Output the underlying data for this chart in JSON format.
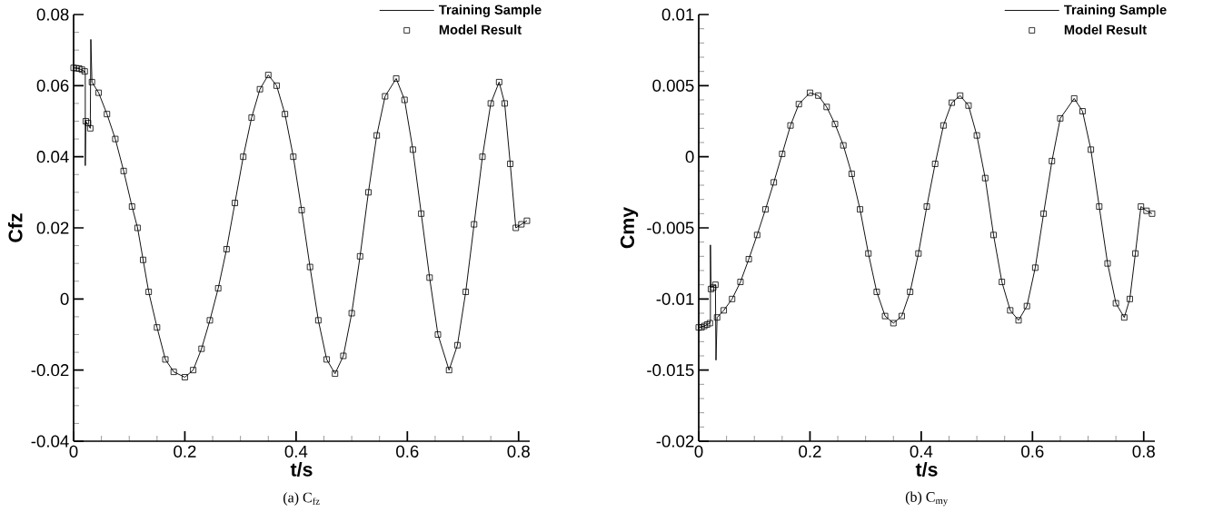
{
  "chart_data": [
    {
      "type": "line",
      "xlabel": "t/s",
      "ylabel": "Cfz",
      "annotations": [
        "(a) C$_{fz}$"
      ],
      "legend": "top right",
      "xlim": [
        0,
        0.82
      ],
      "ylim": [
        -0.04,
        0.08
      ],
      "xticks": [
        0,
        0.2,
        0.4,
        0.6,
        0.8
      ],
      "yticks": [
        -0.04,
        -0.02,
        0,
        0.02,
        0.04,
        0.06,
        0.08
      ],
      "series": [
        {
          "name": "Training Sample",
          "type": "line",
          "marker": "none",
          "color": "#000000",
          "x": [
            0,
            0.01,
            0.02,
            0.021,
            0.021,
            0.022,
            0.03,
            0.031,
            0.033,
            0.045,
            0.06,
            0.075,
            0.09,
            0.105,
            0.115,
            0.125,
            0.135,
            0.15,
            0.165,
            0.18,
            0.2,
            0.215,
            0.23,
            0.245,
            0.26,
            0.275,
            0.29,
            0.305,
            0.32,
            0.335,
            0.35,
            0.365,
            0.38,
            0.395,
            0.41,
            0.425,
            0.44,
            0.455,
            0.47,
            0.485,
            0.5,
            0.515,
            0.53,
            0.545,
            0.56,
            0.58,
            0.595,
            0.61,
            0.625,
            0.64,
            0.655,
            0.675,
            0.69,
            0.705,
            0.72,
            0.735,
            0.75,
            0.765,
            0.775,
            0.785,
            0.795,
            0.805,
            0.815
          ],
          "values": [
            0.065,
            0.0648,
            0.064,
            0.0635,
            0.0375,
            0.05,
            0.048,
            0.073,
            0.061,
            0.058,
            0.052,
            0.045,
            0.036,
            0.026,
            0.02,
            0.011,
            0.002,
            -0.008,
            -0.017,
            -0.0205,
            -0.022,
            -0.02,
            -0.014,
            -0.006,
            0.003,
            0.014,
            0.027,
            0.04,
            0.051,
            0.059,
            0.063,
            0.06,
            0.052,
            0.04,
            0.025,
            0.009,
            -0.006,
            -0.017,
            -0.021,
            -0.016,
            -0.004,
            0.012,
            0.03,
            0.046,
            0.057,
            0.062,
            0.056,
            0.042,
            0.024,
            0.006,
            -0.01,
            -0.02,
            -0.013,
            0.002,
            0.021,
            0.04,
            0.055,
            0.061,
            0.055,
            0.038,
            0.02,
            0.021,
            0.022
          ]
        },
        {
          "name": "Model Result",
          "type": "scatter",
          "marker": "square",
          "color": "#000000",
          "x": [
            0,
            0.005,
            0.01,
            0.015,
            0.02,
            0.022,
            0.026,
            0.03,
            0.033,
            0.045,
            0.06,
            0.075,
            0.09,
            0.105,
            0.115,
            0.125,
            0.135,
            0.15,
            0.165,
            0.18,
            0.2,
            0.215,
            0.23,
            0.245,
            0.26,
            0.275,
            0.29,
            0.305,
            0.32,
            0.335,
            0.35,
            0.365,
            0.38,
            0.395,
            0.41,
            0.425,
            0.44,
            0.455,
            0.47,
            0.485,
            0.5,
            0.515,
            0.53,
            0.545,
            0.56,
            0.58,
            0.595,
            0.61,
            0.625,
            0.64,
            0.655,
            0.675,
            0.69,
            0.705,
            0.72,
            0.735,
            0.75,
            0.765,
            0.775,
            0.785,
            0.795,
            0.805,
            0.815
          ],
          "values": [
            0.065,
            0.0649,
            0.0648,
            0.0645,
            0.064,
            0.05,
            0.0495,
            0.048,
            0.061,
            0.058,
            0.052,
            0.045,
            0.036,
            0.026,
            0.02,
            0.011,
            0.002,
            -0.008,
            -0.017,
            -0.0205,
            -0.022,
            -0.02,
            -0.014,
            -0.006,
            0.003,
            0.014,
            0.027,
            0.04,
            0.051,
            0.059,
            0.063,
            0.06,
            0.052,
            0.04,
            0.025,
            0.009,
            -0.006,
            -0.017,
            -0.021,
            -0.016,
            -0.004,
            0.012,
            0.03,
            0.046,
            0.057,
            0.062,
            0.056,
            0.042,
            0.024,
            0.006,
            -0.01,
            -0.02,
            -0.013,
            0.002,
            0.021,
            0.04,
            0.055,
            0.061,
            0.055,
            0.038,
            0.02,
            0.021,
            0.022
          ]
        }
      ]
    },
    {
      "type": "line",
      "xlabel": "t/s",
      "ylabel": "Cmy",
      "annotations": [
        "(b) C$_{my}$"
      ],
      "legend": "top right",
      "xlim": [
        0,
        0.82
      ],
      "ylim": [
        -0.02,
        0.01
      ],
      "xticks": [
        0,
        0.2,
        0.4,
        0.6,
        0.8
      ],
      "yticks": [
        -0.02,
        -0.015,
        -0.01,
        -0.005,
        0,
        0.005,
        0.01
      ],
      "series": [
        {
          "name": "Training Sample",
          "type": "line",
          "marker": "none",
          "color": "#000000",
          "x": [
            0,
            0.01,
            0.02,
            0.021,
            0.021,
            0.022,
            0.03,
            0.031,
            0.033,
            0.045,
            0.06,
            0.075,
            0.09,
            0.105,
            0.12,
            0.135,
            0.15,
            0.165,
            0.18,
            0.2,
            0.215,
            0.23,
            0.245,
            0.26,
            0.275,
            0.29,
            0.305,
            0.32,
            0.335,
            0.35,
            0.365,
            0.38,
            0.395,
            0.41,
            0.425,
            0.44,
            0.455,
            0.47,
            0.485,
            0.5,
            0.515,
            0.53,
            0.545,
            0.56,
            0.575,
            0.59,
            0.605,
            0.62,
            0.635,
            0.65,
            0.675,
            0.69,
            0.705,
            0.72,
            0.735,
            0.75,
            0.765,
            0.775,
            0.785,
            0.795,
            0.805,
            0.815
          ],
          "values": [
            -0.012,
            -0.0119,
            -0.0117,
            -0.0115,
            -0.0062,
            -0.0092,
            -0.009,
            -0.0143,
            -0.0113,
            -0.0108,
            -0.01,
            -0.0088,
            -0.0072,
            -0.0055,
            -0.0037,
            -0.0018,
            0.0002,
            0.0022,
            0.0037,
            0.0045,
            0.0043,
            0.0035,
            0.0023,
            0.0008,
            -0.0012,
            -0.0037,
            -0.0068,
            -0.0095,
            -0.0112,
            -0.0117,
            -0.0112,
            -0.0095,
            -0.0068,
            -0.0035,
            -0.0005,
            0.0022,
            0.0038,
            0.0043,
            0.0036,
            0.0015,
            -0.0015,
            -0.0055,
            -0.0088,
            -0.0108,
            -0.0115,
            -0.0105,
            -0.0078,
            -0.004,
            -0.0003,
            0.0027,
            0.0041,
            0.0032,
            0.0005,
            -0.0035,
            -0.0075,
            -0.0103,
            -0.0113,
            -0.01,
            -0.0068,
            -0.0035,
            -0.0038,
            -0.004
          ]
        },
        {
          "name": "Model Result",
          "type": "scatter",
          "marker": "square",
          "color": "#000000",
          "x": [
            0,
            0.005,
            0.01,
            0.015,
            0.02,
            0.022,
            0.026,
            0.03,
            0.033,
            0.045,
            0.06,
            0.075,
            0.09,
            0.105,
            0.12,
            0.135,
            0.15,
            0.165,
            0.18,
            0.2,
            0.215,
            0.23,
            0.245,
            0.26,
            0.275,
            0.29,
            0.305,
            0.32,
            0.335,
            0.35,
            0.365,
            0.38,
            0.395,
            0.41,
            0.425,
            0.44,
            0.455,
            0.47,
            0.485,
            0.5,
            0.515,
            0.53,
            0.545,
            0.56,
            0.575,
            0.59,
            0.605,
            0.62,
            0.635,
            0.65,
            0.675,
            0.69,
            0.705,
            0.72,
            0.735,
            0.75,
            0.765,
            0.775,
            0.785,
            0.795,
            0.805,
            0.815
          ],
          "values": [
            -0.012,
            -0.012,
            -0.0119,
            -0.0118,
            -0.0117,
            -0.0093,
            -0.0092,
            -0.009,
            -0.0113,
            -0.0108,
            -0.01,
            -0.0088,
            -0.0072,
            -0.0055,
            -0.0037,
            -0.0018,
            0.0002,
            0.0022,
            0.0037,
            0.0045,
            0.0043,
            0.0035,
            0.0023,
            0.0008,
            -0.0012,
            -0.0037,
            -0.0068,
            -0.0095,
            -0.0112,
            -0.0117,
            -0.0112,
            -0.0095,
            -0.0068,
            -0.0035,
            -0.0005,
            0.0022,
            0.0038,
            0.0043,
            0.0036,
            0.0015,
            -0.0015,
            -0.0055,
            -0.0088,
            -0.0108,
            -0.0115,
            -0.0105,
            -0.0078,
            -0.004,
            -0.0003,
            0.0027,
            0.0041,
            0.0032,
            0.0005,
            -0.0035,
            -0.0075,
            -0.0103,
            -0.0113,
            -0.01,
            -0.0068,
            -0.0035,
            -0.0038,
            -0.004
          ]
        }
      ]
    }
  ]
}
